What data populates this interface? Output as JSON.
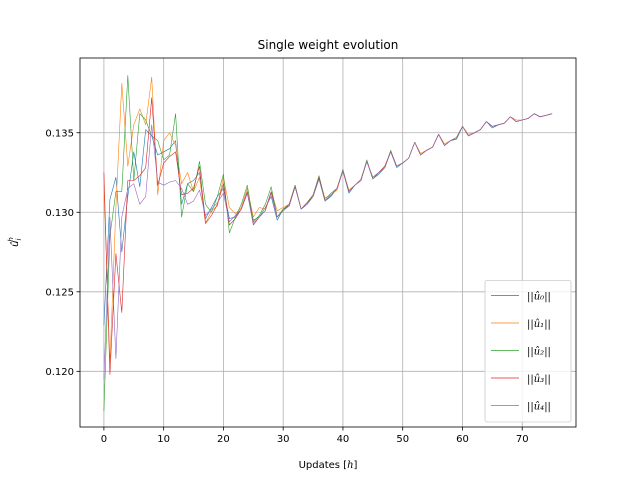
{
  "chart_data": {
    "type": "line",
    "title": "Single weight evolution",
    "xlabel": "Updates [h]",
    "ylabel": "û_i^h",
    "xlim": [
      -4,
      79
    ],
    "ylim": [
      0.1165,
      0.1397
    ],
    "xticks": [
      0,
      10,
      20,
      30,
      40,
      50,
      60,
      70
    ],
    "yticks": [
      0.12,
      0.125,
      0.13,
      0.135
    ],
    "ytick_labels": [
      "0.120",
      "0.125",
      "0.130",
      "0.135"
    ],
    "grid": true,
    "legend_position": "lower-right",
    "series": [
      {
        "name": "||û₀||",
        "color": "#1f77b4",
        "x": [
          0,
          1,
          2,
          3,
          4,
          5,
          6,
          7,
          8,
          9,
          10,
          11,
          12,
          13,
          14,
          15,
          16,
          17,
          18,
          19,
          20,
          21,
          22,
          23,
          24,
          25,
          26,
          27,
          28,
          29,
          30,
          31,
          32,
          33,
          34,
          35,
          36,
          37,
          38,
          39,
          40,
          41,
          42,
          43,
          44,
          45,
          46,
          47,
          48,
          49,
          50,
          51,
          52,
          53,
          54,
          55,
          56,
          57,
          58,
          59,
          60,
          61,
          62,
          63,
          64,
          65,
          66,
          67,
          68,
          69,
          70,
          71,
          72,
          73,
          74,
          75
        ],
        "values": [
          0.1229,
          0.1308,
          0.1322,
          0.1275,
          0.131,
          0.1338,
          0.1316,
          0.1352,
          0.1348,
          0.1336,
          0.1338,
          0.134,
          0.1345,
          0.1305,
          0.1318,
          0.132,
          0.1325,
          0.1296,
          0.1303,
          0.131,
          0.1315,
          0.1296,
          0.1297,
          0.1302,
          0.1312,
          0.1295,
          0.1297,
          0.1303,
          0.131,
          0.1295,
          0.1302,
          0.1304,
          0.1316,
          0.1302,
          0.1305,
          0.131,
          0.1321,
          0.1307,
          0.131,
          0.1315,
          0.1326,
          0.1312,
          0.1317,
          0.132,
          0.1332,
          0.1321,
          0.1324,
          0.1328,
          0.1338,
          0.1328,
          0.1331,
          0.1334,
          0.1344,
          0.1336,
          0.1339,
          0.1341,
          0.1349,
          0.1342,
          0.1345,
          0.1346,
          0.1354,
          0.1348,
          0.135,
          0.1352,
          0.1357,
          0.1353,
          0.1355,
          0.1356,
          0.136,
          0.1357,
          0.1358,
          0.1359,
          0.1362,
          0.136,
          0.1361,
          0.1362
        ]
      },
      {
        "name": "||û₁||",
        "color": "#ff7f0e",
        "x": [
          0,
          1,
          2,
          3,
          4,
          5,
          6,
          7,
          8,
          9,
          10,
          11,
          12,
          13,
          14,
          15,
          16,
          17,
          18,
          19,
          20,
          21,
          22,
          23,
          24,
          25,
          26,
          27,
          28,
          29,
          30,
          31,
          32,
          33,
          34,
          35,
          36,
          37,
          38,
          39,
          40,
          41,
          42,
          43,
          44,
          45,
          46,
          47,
          48,
          49,
          50,
          51,
          52,
          53,
          54,
          55,
          56,
          57,
          58,
          59,
          60,
          61,
          62,
          63,
          64,
          65,
          66,
          67,
          68,
          69,
          70,
          71,
          72,
          73,
          74,
          75
        ],
        "values": [
          0.1318,
          0.1205,
          0.1303,
          0.1381,
          0.1329,
          0.1355,
          0.1365,
          0.1355,
          0.1385,
          0.1311,
          0.1345,
          0.135,
          0.1342,
          0.1318,
          0.1325,
          0.1313,
          0.1322,
          0.1293,
          0.1301,
          0.1304,
          0.1322,
          0.1303,
          0.1299,
          0.1303,
          0.1315,
          0.1297,
          0.1303,
          0.1302,
          0.1313,
          0.1301,
          0.1303,
          0.1305,
          0.1317,
          0.1302,
          0.1306,
          0.1311,
          0.1321,
          0.1309,
          0.1311,
          0.1314,
          0.1326,
          0.1314,
          0.1317,
          0.1321,
          0.1332,
          0.1321,
          0.1325,
          0.1329,
          0.1338,
          0.1329,
          0.1331,
          0.1334,
          0.1344,
          0.1337,
          0.1339,
          0.1341,
          0.1349,
          0.1343,
          0.1345,
          0.1347,
          0.1354,
          0.1349,
          0.135,
          0.1352,
          0.1357,
          0.1354,
          0.1355,
          0.1356,
          0.136,
          0.1358,
          0.1358,
          0.1359,
          0.1362,
          0.136,
          0.1361,
          0.1362
        ]
      },
      {
        "name": "||û₂||",
        "color": "#2ca02c",
        "x": [
          0,
          1,
          2,
          3,
          4,
          5,
          6,
          7,
          8,
          9,
          10,
          11,
          12,
          13,
          14,
          15,
          16,
          17,
          18,
          19,
          20,
          21,
          22,
          23,
          24,
          25,
          26,
          27,
          28,
          29,
          30,
          31,
          32,
          33,
          34,
          35,
          36,
          37,
          38,
          39,
          40,
          41,
          42,
          43,
          44,
          45,
          46,
          47,
          48,
          49,
          50,
          51,
          52,
          53,
          54,
          55,
          56,
          57,
          58,
          59,
          60,
          61,
          62,
          63,
          64,
          65,
          66,
          67,
          68,
          69,
          70,
          71,
          72,
          73,
          74,
          75
        ],
        "values": [
          0.1175,
          0.1285,
          0.1313,
          0.1313,
          0.1386,
          0.132,
          0.1362,
          0.1358,
          0.1348,
          0.1345,
          0.1333,
          0.1336,
          0.1362,
          0.1297,
          0.1318,
          0.1313,
          0.1332,
          0.1305,
          0.13,
          0.131,
          0.1324,
          0.1287,
          0.1297,
          0.1305,
          0.1317,
          0.1294,
          0.1298,
          0.1305,
          0.1316,
          0.1297,
          0.1302,
          0.1305,
          0.1317,
          0.1302,
          0.1306,
          0.1311,
          0.1323,
          0.1308,
          0.1312,
          0.1315,
          0.1327,
          0.1313,
          0.1317,
          0.132,
          0.1333,
          0.1321,
          0.1325,
          0.1328,
          0.1339,
          0.1329,
          0.1331,
          0.1334,
          0.1344,
          0.1336,
          0.1339,
          0.1341,
          0.1349,
          0.1342,
          0.1345,
          0.1346,
          0.1354,
          0.1348,
          0.135,
          0.1352,
          0.1357,
          0.1354,
          0.1355,
          0.1356,
          0.136,
          0.1357,
          0.1358,
          0.1359,
          0.1362,
          0.136,
          0.1361,
          0.1362
        ]
      },
      {
        "name": "||û₃||",
        "color": "#d62728",
        "x": [
          0,
          1,
          2,
          3,
          4,
          5,
          6,
          7,
          8,
          9,
          10,
          11,
          12,
          13,
          14,
          15,
          16,
          17,
          18,
          19,
          20,
          21,
          22,
          23,
          24,
          25,
          26,
          27,
          28,
          29,
          30,
          31,
          32,
          33,
          34,
          35,
          36,
          37,
          38,
          39,
          40,
          41,
          42,
          43,
          44,
          45,
          46,
          47,
          48,
          49,
          50,
          51,
          52,
          53,
          54,
          55,
          56,
          57,
          58,
          59,
          60,
          61,
          62,
          63,
          64,
          65,
          66,
          67,
          68,
          69,
          70,
          71,
          72,
          73,
          74,
          75
        ],
        "values": [
          0.1325,
          0.1198,
          0.1274,
          0.1237,
          0.132,
          0.132,
          0.1323,
          0.1328,
          0.1372,
          0.1317,
          0.1331,
          0.1335,
          0.1338,
          0.1311,
          0.1312,
          0.1315,
          0.1329,
          0.1293,
          0.1298,
          0.1305,
          0.1318,
          0.1292,
          0.1296,
          0.1302,
          0.1313,
          0.1292,
          0.1297,
          0.1301,
          0.1313,
          0.1297,
          0.1301,
          0.1305,
          0.1316,
          0.1302,
          0.1306,
          0.131,
          0.1322,
          0.1307,
          0.1311,
          0.1315,
          0.1326,
          0.1313,
          0.1317,
          0.132,
          0.1332,
          0.1322,
          0.1325,
          0.1329,
          0.1338,
          0.1329,
          0.1331,
          0.1334,
          0.1344,
          0.1336,
          0.1339,
          0.1341,
          0.1349,
          0.1342,
          0.1345,
          0.1347,
          0.1354,
          0.1348,
          0.135,
          0.1352,
          0.1357,
          0.1354,
          0.1355,
          0.1356,
          0.136,
          0.1357,
          0.1358,
          0.1359,
          0.1362,
          0.136,
          0.1361,
          0.1362
        ]
      },
      {
        "name": "||û₄||",
        "color": "#9467bd",
        "x": [
          0,
          1,
          2,
          3,
          4,
          5,
          6,
          7,
          8,
          9,
          10,
          11,
          12,
          13,
          14,
          15,
          16,
          17,
          18,
          19,
          20,
          21,
          22,
          23,
          24,
          25,
          26,
          27,
          28,
          29,
          30,
          31,
          32,
          33,
          34,
          35,
          36,
          37,
          38,
          39,
          40,
          41,
          42,
          43,
          44,
          45,
          46,
          47,
          48,
          49,
          50,
          51,
          52,
          53,
          54,
          55,
          56,
          57,
          58,
          59,
          60,
          61,
          62,
          63,
          64,
          65,
          66,
          67,
          68,
          69,
          70,
          71,
          72,
          73,
          74,
          75
        ],
        "values": [
          0.1195,
          0.1297,
          0.1208,
          0.1297,
          0.1315,
          0.1318,
          0.1305,
          0.131,
          0.1355,
          0.1319,
          0.1317,
          0.1319,
          0.132,
          0.1315,
          0.1305,
          0.1307,
          0.1314,
          0.1298,
          0.1302,
          0.1306,
          0.1312,
          0.1294,
          0.1298,
          0.1302,
          0.1312,
          0.1293,
          0.1297,
          0.1301,
          0.1312,
          0.1297,
          0.1301,
          0.1304,
          0.1316,
          0.1302,
          0.1305,
          0.131,
          0.1321,
          0.1307,
          0.1311,
          0.1315,
          0.1326,
          0.1313,
          0.1317,
          0.132,
          0.1332,
          0.1322,
          0.1325,
          0.1328,
          0.1338,
          0.1329,
          0.1331,
          0.1334,
          0.1344,
          0.1336,
          0.1339,
          0.1341,
          0.1349,
          0.1342,
          0.1345,
          0.1347,
          0.1354,
          0.1348,
          0.135,
          0.1352,
          0.1357,
          0.1354,
          0.1355,
          0.1356,
          0.136,
          0.1357,
          0.1358,
          0.1359,
          0.1362,
          0.136,
          0.1361,
          0.1362
        ]
      }
    ]
  }
}
